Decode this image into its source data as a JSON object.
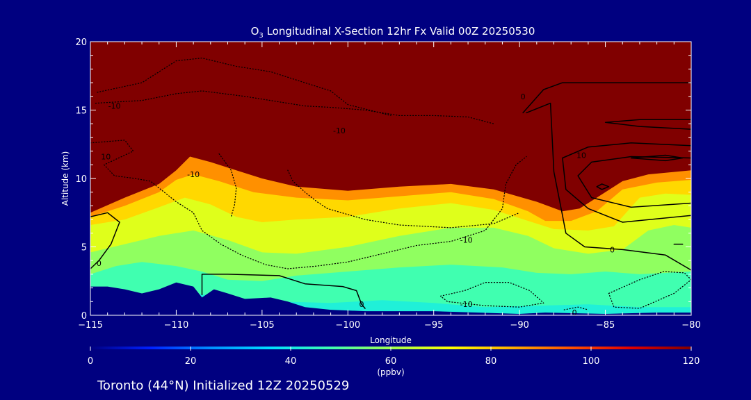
{
  "chart_data": {
    "type": "heatmap",
    "title": {
      "species": "O",
      "subscript": "3",
      "rest": " Longitudinal X-Section 12hr  Fx Valid 00Z 20250530"
    },
    "xlabel": "Longitude",
    "ylabel": "Altitude (km)",
    "xlim": [
      -115,
      -80
    ],
    "ylim": [
      0,
      20
    ],
    "x_ticks": [
      -115,
      -110,
      -105,
      -100,
      -95,
      -90,
      -85,
      -80
    ],
    "y_ticks": [
      0,
      5,
      10,
      15,
      20
    ],
    "colorbar": {
      "min": 0,
      "max": 120,
      "ticks": [
        0,
        20,
        40,
        60,
        80,
        100,
        120
      ],
      "unit": "(ppbv)",
      "colors": [
        "#000080",
        "#0020ff",
        "#0090ff",
        "#00e0ff",
        "#40ffb0",
        "#a0ff50",
        "#ffff00",
        "#ffb000",
        "#ff5000",
        "#e00000",
        "#800000"
      ]
    },
    "background_color": "#800000",
    "layers": [
      {
        "value": 88,
        "top": [
          [
            -115,
            7.5
          ],
          [
            -113,
            8.6
          ],
          [
            -111,
            9.6
          ],
          [
            -110,
            10.6
          ],
          [
            -109.2,
            11.6
          ],
          [
            -108,
            11.2
          ],
          [
            -106.5,
            10.6
          ],
          [
            -105,
            10.0
          ],
          [
            -103,
            9.4
          ],
          [
            -100,
            9.1
          ],
          [
            -97,
            9.4
          ],
          [
            -94,
            9.6
          ],
          [
            -91.5,
            9.2
          ],
          [
            -89,
            8.3
          ],
          [
            -87.5,
            7.6
          ],
          [
            -86.5,
            7.8
          ],
          [
            -85.5,
            8.6
          ],
          [
            -84,
            9.8
          ],
          [
            -82.5,
            10.3
          ],
          [
            -80,
            10.6
          ]
        ]
      },
      {
        "value": 78,
        "top": [
          [
            -115,
            7.2
          ],
          [
            -113,
            8.0
          ],
          [
            -111,
            9.0
          ],
          [
            -110,
            9.9
          ],
          [
            -109,
            10.3
          ],
          [
            -107.5,
            9.8
          ],
          [
            -105.5,
            9.0
          ],
          [
            -103,
            8.6
          ],
          [
            -100,
            8.4
          ],
          [
            -97,
            8.7
          ],
          [
            -94,
            9.0
          ],
          [
            -91.5,
            8.5
          ],
          [
            -89.5,
            7.6
          ],
          [
            -88.5,
            6.9
          ],
          [
            -87,
            6.9
          ],
          [
            -85.5,
            7.6
          ],
          [
            -84,
            9.2
          ],
          [
            -82,
            9.7
          ],
          [
            -80,
            9.9
          ]
        ]
      },
      {
        "value": 68,
        "top": [
          [
            -115,
            6.6
          ],
          [
            -113,
            7.0
          ],
          [
            -111,
            7.9
          ],
          [
            -109.5,
            8.6
          ],
          [
            -108,
            8.1
          ],
          [
            -106.5,
            7.2
          ],
          [
            -105,
            6.8
          ],
          [
            -103,
            7.0
          ],
          [
            -100,
            7.2
          ],
          [
            -97,
            7.8
          ],
          [
            -94,
            8.2
          ],
          [
            -91.5,
            7.7
          ],
          [
            -89.5,
            6.9
          ],
          [
            -88,
            6.3
          ],
          [
            -86,
            6.2
          ],
          [
            -84.5,
            6.5
          ],
          [
            -83,
            8.6
          ],
          [
            -81.5,
            8.9
          ],
          [
            -80,
            8.8
          ]
        ]
      },
      {
        "value": 58,
        "top": [
          [
            -115,
            4.6
          ],
          [
            -113,
            5.2
          ],
          [
            -111,
            5.8
          ],
          [
            -109,
            6.2
          ],
          [
            -107,
            5.5
          ],
          [
            -105,
            4.6
          ],
          [
            -103,
            4.5
          ],
          [
            -100,
            5.0
          ],
          [
            -97,
            5.8
          ],
          [
            -94,
            6.4
          ],
          [
            -91.5,
            6.4
          ],
          [
            -89.5,
            5.8
          ],
          [
            -88,
            4.9
          ],
          [
            -86,
            4.5
          ],
          [
            -84,
            4.8
          ],
          [
            -82.5,
            6.2
          ],
          [
            -81,
            6.6
          ],
          [
            -80,
            6.4
          ]
        ]
      },
      {
        "value": 48,
        "top": [
          [
            -115,
            3.0
          ],
          [
            -113.5,
            3.6
          ],
          [
            -112,
            3.9
          ],
          [
            -110,
            3.6
          ],
          [
            -108.5,
            3.2
          ],
          [
            -107,
            2.6
          ],
          [
            -105,
            2.5
          ],
          [
            -103,
            2.9
          ],
          [
            -100,
            3.2
          ],
          [
            -97,
            3.5
          ],
          [
            -94,
            3.7
          ],
          [
            -91,
            3.5
          ],
          [
            -89,
            3.1
          ],
          [
            -87,
            3.0
          ],
          [
            -85,
            3.2
          ],
          [
            -83,
            3.0
          ],
          [
            -80,
            3.2
          ]
        ]
      },
      {
        "value": 42,
        "top": [
          [
            -115,
            1.3
          ],
          [
            -112,
            1.4
          ],
          [
            -109,
            1.6
          ],
          [
            -106.5,
            1.2
          ],
          [
            -104,
            1.0
          ],
          [
            -101,
            0.9
          ],
          [
            -98,
            1.1
          ],
          [
            -95,
            0.9
          ],
          [
            -92,
            0.6
          ],
          [
            -89,
            0.7
          ],
          [
            -86,
            0.8
          ],
          [
            -83,
            0.6
          ],
          [
            -80,
            0.6
          ]
        ]
      }
    ],
    "terrain": [
      [
        -115,
        2.1
      ],
      [
        -114,
        2.1
      ],
      [
        -113,
        1.9
      ],
      [
        -112,
        1.6
      ],
      [
        -111,
        1.9
      ],
      [
        -110,
        2.4
      ],
      [
        -109,
        2.1
      ],
      [
        -108.5,
        1.3
      ],
      [
        -107.8,
        1.9
      ],
      [
        -107,
        1.6
      ],
      [
        -106,
        1.2
      ],
      [
        -104.5,
        1.3
      ],
      [
        -103.5,
        1.0
      ],
      [
        -102.5,
        0.6
      ],
      [
        -101,
        0.4
      ],
      [
        -99,
        0.3
      ],
      [
        -95,
        0.3
      ],
      [
        -90,
        0.1
      ],
      [
        -88.5,
        0.2
      ],
      [
        -85,
        0.1
      ],
      [
        -82,
        0.2
      ],
      [
        -80,
        0.2
      ]
    ],
    "contours": [
      {
        "style": "solid",
        "points": [
          [
            -115,
            7.2
          ],
          [
            -114,
            7.5
          ],
          [
            -113.3,
            6.8
          ],
          [
            -113.8,
            5.2
          ],
          [
            -114.5,
            4.0
          ],
          [
            -115,
            3.4
          ]
        ]
      },
      {
        "style": "solid",
        "points": [
          [
            -108.5,
            1.5
          ],
          [
            -108.5,
            3.0
          ],
          [
            -107,
            3.0
          ],
          [
            -104,
            2.9
          ],
          [
            -102.5,
            2.3
          ],
          [
            -100.3,
            2.1
          ],
          [
            -99.5,
            1.8
          ],
          [
            -99.2,
            0.8
          ],
          [
            -99,
            0.5
          ]
        ]
      },
      {
        "style": "solid",
        "points": [
          [
            -89.8,
            14.8
          ],
          [
            -88.6,
            16.5
          ],
          [
            -87.5,
            17.0
          ],
          [
            -84,
            17.0
          ],
          [
            -80,
            17.0
          ]
        ]
      },
      {
        "style": "solid",
        "points": [
          [
            -89.6,
            14.8
          ],
          [
            -88.2,
            15.5
          ],
          [
            -88,
            10.5
          ],
          [
            -87.5,
            7.3
          ],
          [
            -87.3,
            6.0
          ],
          [
            -86.2,
            5.0
          ],
          [
            -84,
            4.8
          ],
          [
            -81.5,
            4.4
          ],
          [
            -80,
            3.3
          ]
        ]
      },
      {
        "style": "solid",
        "points": [
          [
            -80,
            12.4
          ],
          [
            -83.5,
            12.6
          ],
          [
            -86,
            12.3
          ],
          [
            -87.5,
            11.5
          ],
          [
            -87.3,
            9.2
          ],
          [
            -86,
            7.8
          ],
          [
            -84,
            6.8
          ],
          [
            -80,
            7.3
          ]
        ]
      },
      {
        "style": "solid",
        "points": [
          [
            -80,
            11.5
          ],
          [
            -83.5,
            11.6
          ],
          [
            -85.8,
            11.2
          ],
          [
            -86.6,
            10.2
          ],
          [
            -85.8,
            8.6
          ],
          [
            -83.5,
            7.9
          ],
          [
            -80,
            8.2
          ]
        ]
      },
      {
        "style": "solid",
        "points": [
          [
            -85.2,
            9.6
          ],
          [
            -84.8,
            9.4
          ],
          [
            -85.2,
            9.2
          ],
          [
            -85.5,
            9.4
          ],
          [
            -85.2,
            9.6
          ]
        ]
      },
      {
        "style": "solid",
        "points": [
          [
            -83.5,
            11.5
          ],
          [
            -81.5,
            11.7
          ],
          [
            -80.5,
            11.5
          ],
          [
            -81.5,
            11.3
          ],
          [
            -83.5,
            11.5
          ]
        ]
      },
      {
        "style": "solid",
        "points": [
          [
            -80,
            14.3
          ],
          [
            -83,
            14.3
          ],
          [
            -85,
            14.1
          ],
          [
            -83,
            13.8
          ],
          [
            -80,
            13.6
          ]
        ]
      },
      {
        "style": "solid",
        "points": [
          [
            -81,
            5.2
          ],
          [
            -80.5,
            5.2
          ]
        ]
      },
      {
        "style": "dotted",
        "points": [
          [
            -114.7,
            15.5
          ],
          [
            -112,
            15.7
          ],
          [
            -110,
            16.2
          ],
          [
            -108.5,
            16.4
          ],
          [
            -106,
            16.0
          ],
          [
            -104,
            15.6
          ],
          [
            -102.5,
            15.3
          ],
          [
            -101,
            15.2
          ],
          [
            -99,
            15.0
          ],
          [
            -97,
            14.6
          ],
          [
            -95,
            14.6
          ],
          [
            -93,
            14.5
          ],
          [
            -91.5,
            14.0
          ]
        ]
      },
      {
        "style": "dotted",
        "points": [
          [
            -114.6,
            16.3
          ],
          [
            -112,
            17.0
          ],
          [
            -110,
            18.6
          ],
          [
            -108.5,
            18.8
          ],
          [
            -106.5,
            18.2
          ],
          [
            -104.5,
            17.8
          ],
          [
            -103,
            17.2
          ],
          [
            -101,
            16.4
          ],
          [
            -100,
            15.4
          ],
          [
            -97.5,
            14.6
          ]
        ]
      },
      {
        "style": "dotted",
        "points": [
          [
            -115,
            12.6
          ],
          [
            -113,
            12.8
          ],
          [
            -112.5,
            12.0
          ],
          [
            -114.2,
            11.0
          ],
          [
            -113.6,
            10.2
          ],
          [
            -112.4,
            10.0
          ],
          [
            -111.5,
            9.8
          ],
          [
            -111,
            9.3
          ],
          [
            -110,
            8.3
          ],
          [
            -109,
            7.5
          ],
          [
            -108.5,
            6.2
          ],
          [
            -107.4,
            5.2
          ],
          [
            -106.2,
            4.4
          ],
          [
            -104.8,
            3.7
          ],
          [
            -103.5,
            3.4
          ],
          [
            -101.8,
            3.6
          ],
          [
            -100,
            3.9
          ],
          [
            -98,
            4.5
          ],
          [
            -96,
            5.1
          ],
          [
            -94,
            5.4
          ],
          [
            -92,
            6.2
          ],
          [
            -91,
            7.8
          ],
          [
            -90.8,
            9.6
          ],
          [
            -90.2,
            11.0
          ],
          [
            -89.6,
            11.6
          ]
        ]
      },
      {
        "style": "dotted",
        "points": [
          [
            -107.5,
            11.8
          ],
          [
            -106.8,
            10.6
          ],
          [
            -106.5,
            9.3
          ],
          [
            -106.6,
            8.1
          ],
          [
            -106.8,
            7.2
          ]
        ]
      },
      {
        "style": "dotted",
        "points": [
          [
            -103.5,
            10.6
          ],
          [
            -103.2,
            9.8
          ],
          [
            -102.5,
            9.0
          ],
          [
            -101.8,
            8.3
          ],
          [
            -101.2,
            7.8
          ],
          [
            -99,
            7.0
          ],
          [
            -97,
            6.6
          ],
          [
            -94,
            6.4
          ],
          [
            -91.5,
            6.7
          ],
          [
            -90,
            7.5
          ]
        ]
      },
      {
        "style": "dotted",
        "points": [
          [
            -94.6,
            1.4
          ],
          [
            -93.2,
            1.8
          ],
          [
            -92,
            2.4
          ],
          [
            -90.6,
            2.4
          ],
          [
            -89.4,
            1.8
          ],
          [
            -88.6,
            0.9
          ],
          [
            -90,
            0.6
          ],
          [
            -92,
            0.7
          ],
          [
            -94.2,
            1.0
          ],
          [
            -94.6,
            1.4
          ]
        ]
      },
      {
        "style": "dotted",
        "points": [
          [
            -84.8,
            1.6
          ],
          [
            -83,
            2.6
          ],
          [
            -81.6,
            3.2
          ],
          [
            -80.4,
            3.1
          ],
          [
            -80,
            2.6
          ],
          [
            -81,
            1.6
          ],
          [
            -83,
            0.5
          ],
          [
            -84.5,
            0.6
          ],
          [
            -84.8,
            1.6
          ]
        ]
      },
      {
        "style": "dotted",
        "points": [
          [
            -87.4,
            0.4
          ],
          [
            -86.6,
            0.6
          ],
          [
            -86.0,
            0.4
          ]
        ]
      }
    ],
    "contour_labels": [
      {
        "text": "0",
        "x": -114.5,
        "y": 3.8
      },
      {
        "text": "-10",
        "x": -113.6,
        "y": 15.3
      },
      {
        "text": "10",
        "x": -114.1,
        "y": 11.6
      },
      {
        "text": "-10",
        "x": -109,
        "y": 10.3
      },
      {
        "text": "-10",
        "x": -100.5,
        "y": 13.5
      },
      {
        "text": "-10",
        "x": -93.1,
        "y": 5.5
      },
      {
        "text": "-10",
        "x": -93.1,
        "y": 0.8
      },
      {
        "text": "0",
        "x": -89.8,
        "y": 16.0
      },
      {
        "text": "10",
        "x": -86.4,
        "y": 11.7
      },
      {
        "text": "0",
        "x": -84.6,
        "y": 4.8
      },
      {
        "text": "0",
        "x": -99.2,
        "y": 0.8
      },
      {
        "text": "0",
        "x": -86.8,
        "y": 0.2
      }
    ]
  },
  "footer": {
    "location_text": "Toronto (44°N) Initialized 12Z 20250529"
  }
}
